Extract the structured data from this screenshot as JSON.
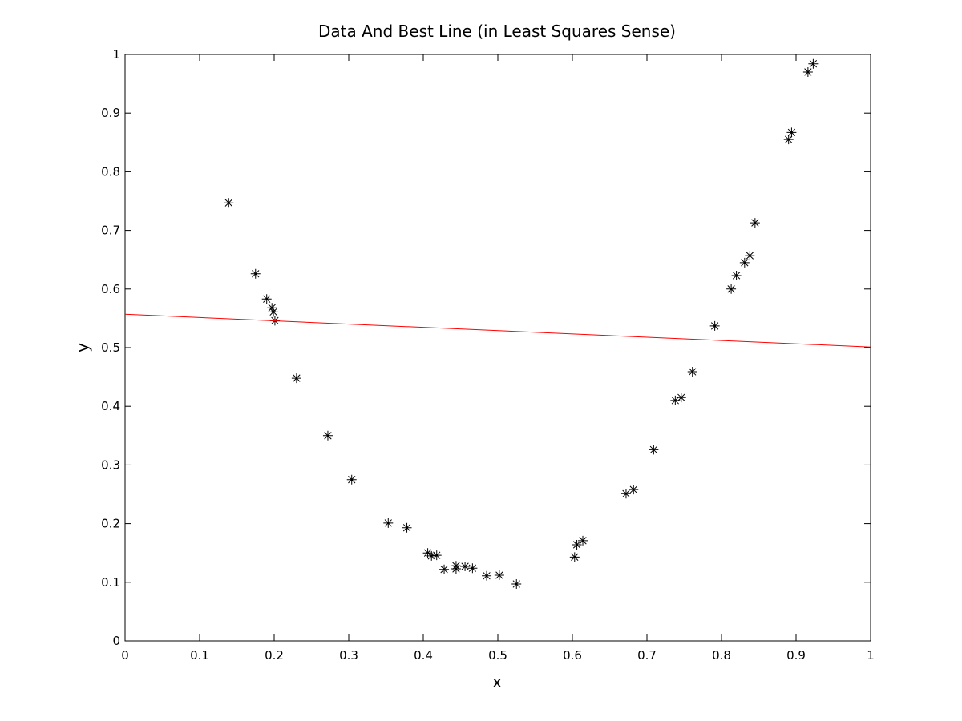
{
  "chart_data": {
    "type": "scatter",
    "title": "Data And Best Line (in Least Squares Sense)",
    "x_label": "x",
    "y_label": "y",
    "xlim": [
      0,
      1
    ],
    "ylim": [
      0,
      1
    ],
    "xticks": [
      0,
      0.1,
      0.2,
      0.3,
      0.4,
      0.5,
      0.6,
      0.7,
      0.8,
      0.9,
      1
    ],
    "yticks": [
      0,
      0.1,
      0.2,
      0.3,
      0.4,
      0.5,
      0.6,
      0.7,
      0.8,
      0.9,
      1
    ],
    "series": [
      {
        "type": "scatter",
        "marker": "*",
        "color": "#000000",
        "x": [
          0.139,
          0.175,
          0.19,
          0.197,
          0.199,
          0.201,
          0.23,
          0.272,
          0.304,
          0.353,
          0.378,
          0.406,
          0.411,
          0.418,
          0.428,
          0.444,
          0.444,
          0.456,
          0.466,
          0.485,
          0.502,
          0.525,
          0.603,
          0.606,
          0.614,
          0.672,
          0.682,
          0.709,
          0.738,
          0.746,
          0.761,
          0.791,
          0.813,
          0.82,
          0.831,
          0.838,
          0.845,
          0.89,
          0.894,
          0.916,
          0.923
        ],
        "values": [
          0.747,
          0.626,
          0.583,
          0.568,
          0.561,
          0.546,
          0.448,
          0.35,
          0.275,
          0.201,
          0.193,
          0.15,
          0.145,
          0.146,
          0.122,
          0.128,
          0.123,
          0.127,
          0.124,
          0.111,
          0.112,
          0.097,
          0.143,
          0.164,
          0.171,
          0.251,
          0.258,
          0.326,
          0.41,
          0.415,
          0.459,
          0.537,
          0.6,
          0.623,
          0.645,
          0.657,
          0.713,
          0.855,
          0.867,
          0.97,
          0.984
        ]
      },
      {
        "type": "line",
        "color": "#ff0000",
        "x": [
          0,
          1
        ],
        "values": [
          0.557,
          0.501
        ]
      }
    ]
  }
}
